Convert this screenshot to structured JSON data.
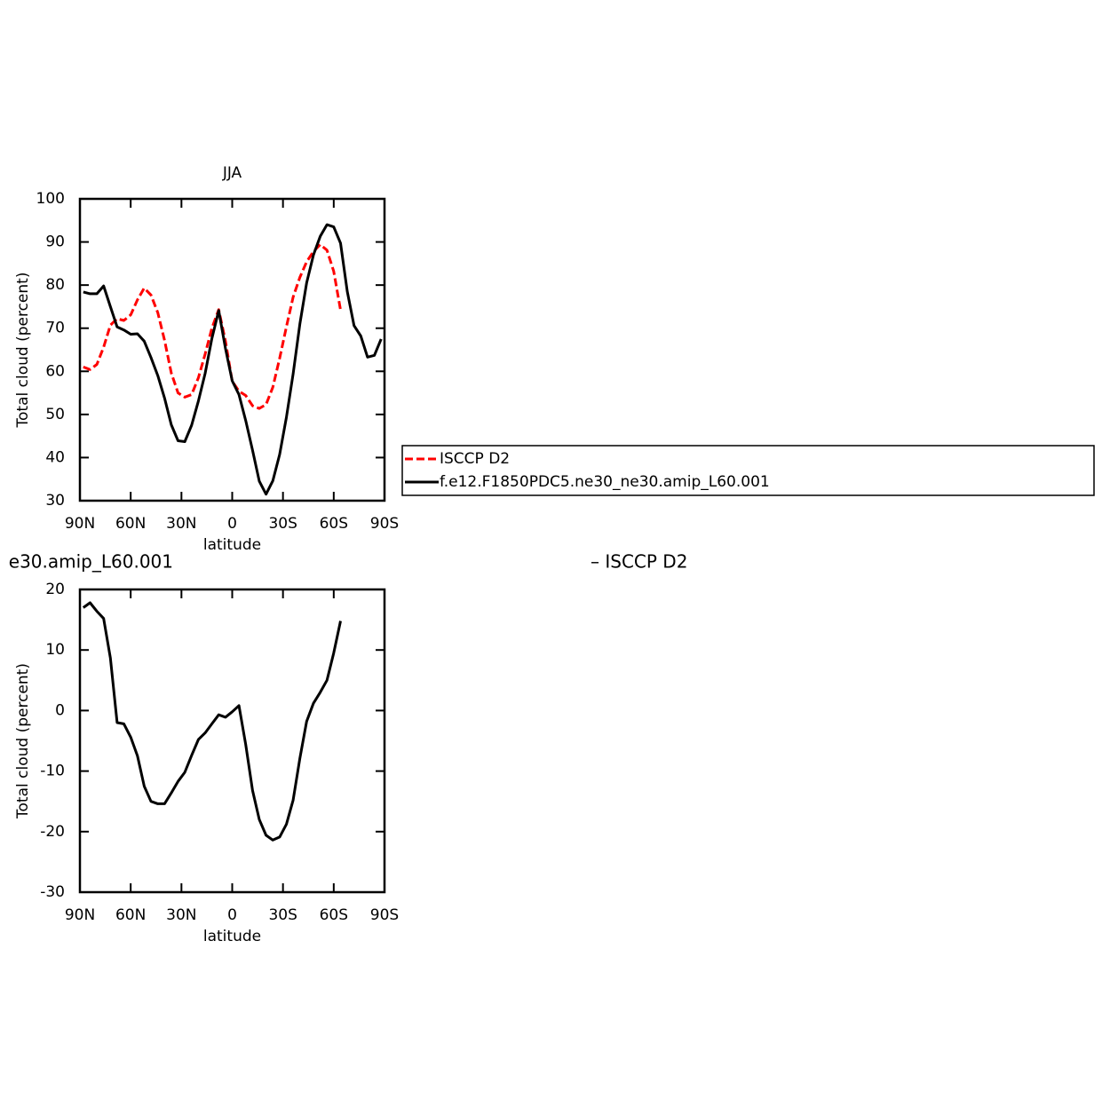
{
  "chart_data": [
    {
      "type": "line",
      "title": "JJA",
      "xlabel": "latitude",
      "ylabel": "Total cloud (percent)",
      "x": [
        88,
        84,
        80,
        76,
        72,
        68,
        64,
        60,
        56,
        52,
        48,
        44,
        40,
        36,
        32,
        28,
        24,
        20,
        16,
        12,
        8,
        4,
        0,
        -4,
        -8,
        -12,
        -16,
        -20,
        -24,
        -28,
        -32,
        -36,
        -40,
        -44,
        -48,
        -52,
        -56,
        -60,
        -64,
        -68,
        -72,
        -76,
        -80,
        -84,
        -88
      ],
      "xlim": [
        90,
        -90
      ],
      "xticks": [
        {
          "value": 90,
          "label": "90N"
        },
        {
          "value": 60,
          "label": "60N"
        },
        {
          "value": 30,
          "label": "30N"
        },
        0,
        {
          "value": -30,
          "label": "30S"
        },
        {
          "value": -60,
          "label": "60S"
        },
        {
          "value": -90,
          "label": "90S"
        }
      ],
      "ylim": [
        30,
        100
      ],
      "yticks": [
        30,
        40,
        50,
        60,
        70,
        80,
        90,
        100
      ],
      "legend": "right",
      "series": [
        {
          "name": "ISCCP D2",
          "color": "#ff0000",
          "dashed": true,
          "values": [
            61,
            60.4,
            61.6,
            65.6,
            70.7,
            72.2,
            71.8,
            73.1,
            76.6,
            79.3,
            77.7,
            73.6,
            67.2,
            59.6,
            55,
            54,
            54.6,
            58.5,
            64,
            70,
            74.3,
            67,
            57.7,
            55.4,
            54.4,
            52,
            51.4,
            52.3,
            56.3,
            63,
            70.3,
            77.2,
            81.8,
            85.4,
            87.8,
            89.4,
            88.1,
            83.2,
            74.2,
            null,
            null,
            null,
            null,
            null,
            null
          ]
        },
        {
          "name": "f.e12.F1850PDC5.ne30_ne30.amip_L60.001",
          "color": "#000000",
          "dashed": false,
          "values": [
            78.4,
            78,
            78,
            79.8,
            75,
            70.3,
            69.6,
            68.6,
            68.7,
            67,
            63.2,
            59,
            53.8,
            47.6,
            43.9,
            43.7,
            47.5,
            53.1,
            59.5,
            67.6,
            74.1,
            65.3,
            57.8,
            54.6,
            48.6,
            41.7,
            34.5,
            31.5,
            34.6,
            40.7,
            49.3,
            59.4,
            71,
            80.5,
            87,
            91.3,
            94,
            93.5,
            89.7,
            78.5,
            70.6,
            68.2,
            63.3,
            63.7,
            67.5
          ]
        }
      ]
    },
    {
      "type": "line",
      "title": [
        "e30.amip_L60.001",
        "– ISCCP D2"
      ],
      "xlabel": "latitude",
      "ylabel": "Total cloud (percent)",
      "x": [
        88,
        84,
        80,
        76,
        72,
        68,
        64,
        60,
        56,
        52,
        48,
        44,
        40,
        36,
        32,
        28,
        24,
        20,
        16,
        12,
        8,
        4,
        0,
        -4,
        -8,
        -12,
        -16,
        -20,
        -24,
        -28,
        -32,
        -36,
        -40,
        -44,
        -48,
        -52,
        -56,
        -60,
        -64,
        -68,
        -72,
        -76,
        -80,
        -84,
        -88
      ],
      "xlim": [
        90,
        -90
      ],
      "xticks": [
        {
          "value": 90,
          "label": "90N"
        },
        {
          "value": 60,
          "label": "60N"
        },
        {
          "value": 30,
          "label": "30N"
        },
        0,
        {
          "value": -30,
          "label": "30S"
        },
        {
          "value": -60,
          "label": "60S"
        },
        {
          "value": -90,
          "label": "90S"
        }
      ],
      "ylim": [
        -30,
        20
      ],
      "yticks": [
        -30,
        -20,
        -10,
        0,
        10,
        20
      ],
      "series": [
        {
          "color": "#000000",
          "dashed": false,
          "values": [
            17,
            17.8,
            16.4,
            15.2,
            8.7,
            -2,
            -2.2,
            -4.4,
            -7.5,
            -12.5,
            -15,
            -15.4,
            -15.4,
            -13.6,
            -11.7,
            -10.2,
            -7.4,
            -4.8,
            -3.7,
            -2.2,
            -0.7,
            -1.1,
            -0.2,
            0.8,
            -5.6,
            -13.2,
            -18,
            -20.6,
            -21.4,
            -20.9,
            -18.8,
            -14.8,
            -7.9,
            -1.8,
            1.2,
            3,
            5,
            9.5,
            14.8,
            null,
            null,
            null,
            null,
            null,
            null
          ]
        }
      ]
    }
  ]
}
